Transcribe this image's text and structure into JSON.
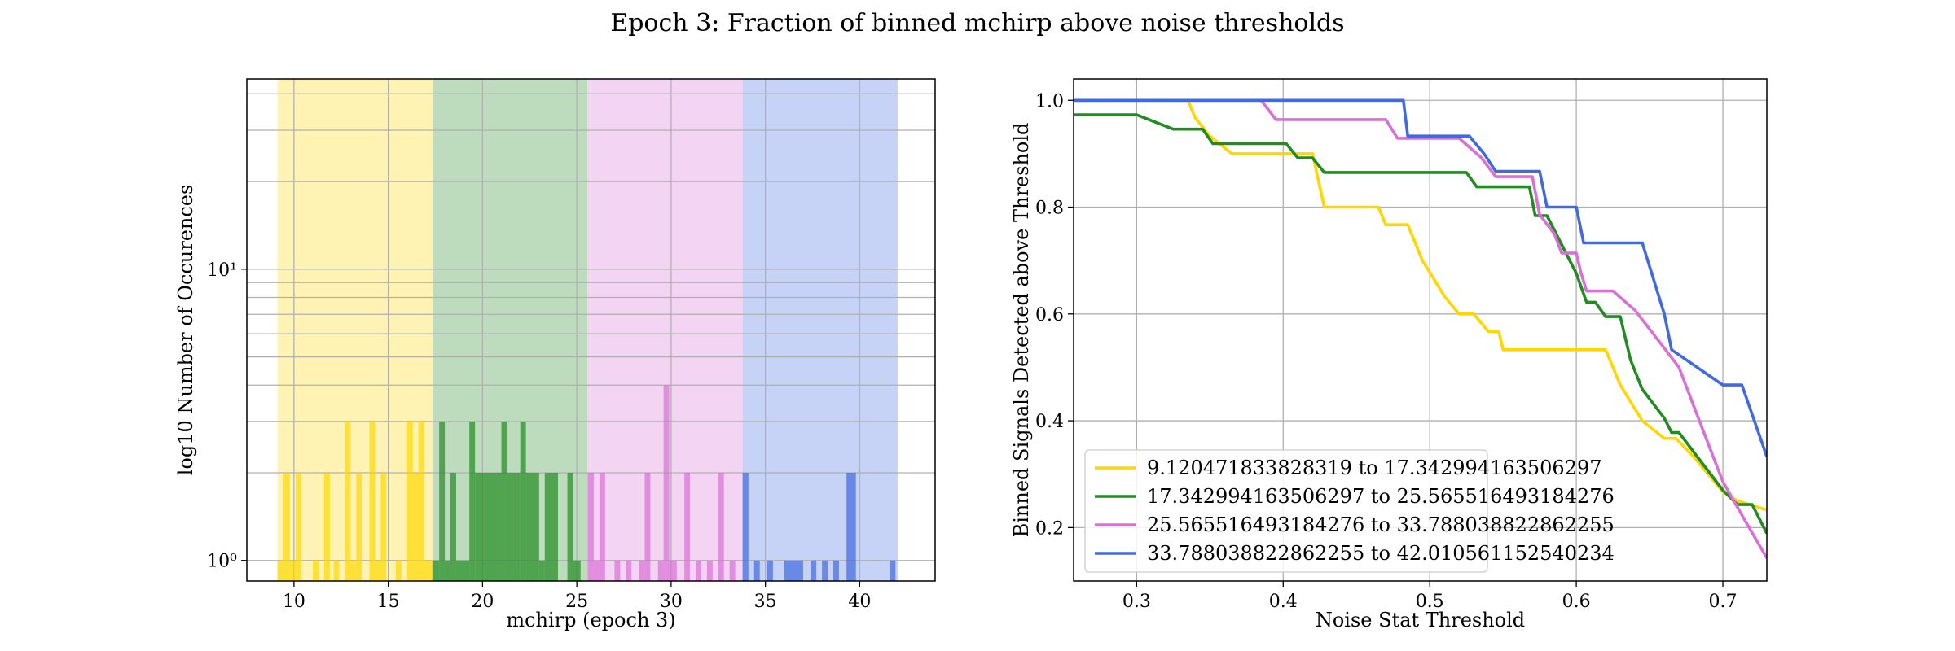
{
  "title": "Epoch 3: Fraction of binned mchirp above noise thresholds",
  "chart_data": [
    {
      "type": "histogram",
      "xlabel": "mchirp (epoch 3)",
      "ylabel": "log10 Number of Occurences",
      "xlim": [
        7.5,
        44
      ],
      "ylim": [
        0.85,
        45
      ],
      "yscale": "log",
      "grid": true,
      "xticks": [
        10,
        15,
        20,
        25,
        30,
        35,
        40
      ],
      "xtick_labels": [
        "10",
        "15",
        "20",
        "25",
        "30",
        "35",
        "40"
      ],
      "yticks": [
        1,
        10
      ],
      "ytick_labels": [
        "10⁰",
        "10¹"
      ],
      "bin_ranges": [
        {
          "from": 9.120471833828319,
          "to": 17.342994163506297,
          "color": "#FFD700"
        },
        {
          "from": 17.342994163506297,
          "to": 25.565516493184276,
          "color": "#228B22"
        },
        {
          "from": 25.565516493184276,
          "to": 33.788038822862255,
          "color": "#DA70D6"
        },
        {
          "from": 33.788038822862255,
          "to": 42.010561152540234,
          "color": "#4169E1"
        }
      ],
      "bars": [
        {
          "x0": 9.12,
          "x1": 9.45,
          "count": 1
        },
        {
          "x0": 9.45,
          "x1": 9.78,
          "count": 2
        },
        {
          "x0": 9.78,
          "x1": 10.1,
          "count": 1
        },
        {
          "x0": 10.1,
          "x1": 10.4,
          "count": 2
        },
        {
          "x0": 11.0,
          "x1": 11.3,
          "count": 1
        },
        {
          "x0": 11.6,
          "x1": 11.9,
          "count": 2
        },
        {
          "x0": 12.1,
          "x1": 12.4,
          "count": 1
        },
        {
          "x0": 12.7,
          "x1": 13.0,
          "count": 3
        },
        {
          "x0": 13.0,
          "x1": 13.3,
          "count": 1
        },
        {
          "x0": 13.3,
          "x1": 13.6,
          "count": 2
        },
        {
          "x0": 14.0,
          "x1": 14.3,
          "count": 3
        },
        {
          "x0": 14.3,
          "x1": 14.6,
          "count": 1
        },
        {
          "x0": 14.6,
          "x1": 14.9,
          "count": 2
        },
        {
          "x0": 15.4,
          "x1": 15.7,
          "count": 1
        },
        {
          "x0": 16.0,
          "x1": 16.3,
          "count": 3
        },
        {
          "x0": 16.3,
          "x1": 16.6,
          "count": 2
        },
        {
          "x0": 16.6,
          "x1": 16.9,
          "count": 3
        },
        {
          "x0": 16.9,
          "x1": 17.34,
          "count": 1
        },
        {
          "x0": 17.34,
          "x1": 17.7,
          "count": 1
        },
        {
          "x0": 17.7,
          "x1": 18.0,
          "count": 3
        },
        {
          "x0": 18.0,
          "x1": 18.3,
          "count": 1
        },
        {
          "x0": 18.3,
          "x1": 18.6,
          "count": 2
        },
        {
          "x0": 18.6,
          "x1": 19.3,
          "count": 1
        },
        {
          "x0": 19.3,
          "x1": 19.6,
          "count": 3
        },
        {
          "x0": 19.6,
          "x1": 21.0,
          "count": 2
        },
        {
          "x0": 21.0,
          "x1": 21.3,
          "count": 3
        },
        {
          "x0": 21.3,
          "x1": 22.0,
          "count": 2
        },
        {
          "x0": 22.0,
          "x1": 22.3,
          "count": 3
        },
        {
          "x0": 22.3,
          "x1": 23.0,
          "count": 2
        },
        {
          "x0": 23.0,
          "x1": 23.3,
          "count": 1
        },
        {
          "x0": 23.3,
          "x1": 24.0,
          "count": 2
        },
        {
          "x0": 24.5,
          "x1": 24.8,
          "count": 2
        },
        {
          "x0": 24.8,
          "x1": 25.2,
          "count": 1
        },
        {
          "x0": 25.57,
          "x1": 25.9,
          "count": 2
        },
        {
          "x0": 25.9,
          "x1": 26.2,
          "count": 1
        },
        {
          "x0": 26.2,
          "x1": 26.5,
          "count": 2
        },
        {
          "x0": 27.0,
          "x1": 27.3,
          "count": 1
        },
        {
          "x0": 27.6,
          "x1": 27.9,
          "count": 1
        },
        {
          "x0": 28.3,
          "x1": 28.6,
          "count": 1
        },
        {
          "x0": 28.6,
          "x1": 28.9,
          "count": 2
        },
        {
          "x0": 29.3,
          "x1": 29.6,
          "count": 1
        },
        {
          "x0": 29.6,
          "x1": 29.9,
          "count": 4
        },
        {
          "x0": 29.9,
          "x1": 30.3,
          "count": 1
        },
        {
          "x0": 30.7,
          "x1": 31.0,
          "count": 2
        },
        {
          "x0": 31.3,
          "x1": 31.6,
          "count": 1
        },
        {
          "x0": 31.9,
          "x1": 32.2,
          "count": 1
        },
        {
          "x0": 32.5,
          "x1": 32.8,
          "count": 2
        },
        {
          "x0": 33.1,
          "x1": 33.4,
          "count": 1
        },
        {
          "x0": 33.79,
          "x1": 34.1,
          "count": 2
        },
        {
          "x0": 34.4,
          "x1": 34.7,
          "count": 1
        },
        {
          "x0": 35.1,
          "x1": 35.4,
          "count": 1
        },
        {
          "x0": 36.0,
          "x1": 37.0,
          "count": 1
        },
        {
          "x0": 37.4,
          "x1": 37.7,
          "count": 1
        },
        {
          "x0": 38.0,
          "x1": 38.3,
          "count": 1
        },
        {
          "x0": 38.6,
          "x1": 38.9,
          "count": 1
        },
        {
          "x0": 39.3,
          "x1": 39.8,
          "count": 2
        },
        {
          "x0": 41.6,
          "x1": 41.9,
          "count": 1
        }
      ]
    },
    {
      "type": "line",
      "xlabel": "Noise Stat Threshold",
      "ylabel": "Binned Signals Detected above Threshold",
      "xlim": [
        0.257,
        0.73
      ],
      "ylim": [
        0.1,
        1.04
      ],
      "grid": true,
      "legend_loc": "lower-left",
      "xticks": [
        0.3,
        0.4,
        0.5,
        0.6,
        0.7
      ],
      "xtick_labels": [
        "0.3",
        "0.4",
        "0.5",
        "0.6",
        "0.7"
      ],
      "yticks": [
        0.2,
        0.4,
        0.6,
        0.8,
        1.0
      ],
      "ytick_labels": [
        "0.2",
        "0.4",
        "0.6",
        "0.8",
        "1.0"
      ],
      "series": [
        {
          "name": "9.120471833828319 to 17.342994163506297",
          "color": "#FFD700",
          "points": [
            [
              0.257,
              1.0
            ],
            [
              0.335,
              1.0
            ],
            [
              0.34,
              0.967
            ],
            [
              0.35,
              0.933
            ],
            [
              0.365,
              0.9
            ],
            [
              0.42,
              0.9
            ],
            [
              0.428,
              0.8
            ],
            [
              0.465,
              0.8
            ],
            [
              0.47,
              0.767
            ],
            [
              0.485,
              0.767
            ],
            [
              0.495,
              0.7
            ],
            [
              0.51,
              0.633
            ],
            [
              0.52,
              0.6
            ],
            [
              0.53,
              0.6
            ],
            [
              0.54,
              0.567
            ],
            [
              0.547,
              0.567
            ],
            [
              0.55,
              0.533
            ],
            [
              0.62,
              0.533
            ],
            [
              0.625,
              0.5
            ],
            [
              0.63,
              0.467
            ],
            [
              0.645,
              0.4
            ],
            [
              0.66,
              0.367
            ],
            [
              0.668,
              0.367
            ],
            [
              0.68,
              0.333
            ],
            [
              0.69,
              0.3
            ],
            [
              0.7,
              0.267
            ],
            [
              0.71,
              0.25
            ],
            [
              0.73,
              0.233
            ]
          ]
        },
        {
          "name": "17.342994163506297 to 25.565516493184276",
          "color": "#228B22",
          "points": [
            [
              0.257,
              0.973
            ],
            [
              0.3,
              0.973
            ],
            [
              0.325,
              0.946
            ],
            [
              0.345,
              0.946
            ],
            [
              0.352,
              0.919
            ],
            [
              0.402,
              0.919
            ],
            [
              0.41,
              0.892
            ],
            [
              0.42,
              0.892
            ],
            [
              0.428,
              0.865
            ],
            [
              0.525,
              0.865
            ],
            [
              0.532,
              0.838
            ],
            [
              0.568,
              0.838
            ],
            [
              0.572,
              0.784
            ],
            [
              0.58,
              0.784
            ],
            [
              0.59,
              0.73
            ],
            [
              0.6,
              0.676
            ],
            [
              0.607,
              0.622
            ],
            [
              0.613,
              0.622
            ],
            [
              0.62,
              0.595
            ],
            [
              0.63,
              0.595
            ],
            [
              0.637,
              0.514
            ],
            [
              0.645,
              0.459
            ],
            [
              0.66,
              0.405
            ],
            [
              0.665,
              0.378
            ],
            [
              0.67,
              0.378
            ],
            [
              0.685,
              0.324
            ],
            [
              0.7,
              0.27
            ],
            [
              0.71,
              0.243
            ],
            [
              0.72,
              0.243
            ],
            [
              0.73,
              0.189
            ]
          ]
        },
        {
          "name": "25.565516493184276 to 33.788038822862255",
          "color": "#DA70D6",
          "points": [
            [
              0.257,
              1.0
            ],
            [
              0.385,
              1.0
            ],
            [
              0.395,
              0.964
            ],
            [
              0.47,
              0.964
            ],
            [
              0.478,
              0.929
            ],
            [
              0.52,
              0.929
            ],
            [
              0.535,
              0.893
            ],
            [
              0.545,
              0.857
            ],
            [
              0.57,
              0.857
            ],
            [
              0.575,
              0.786
            ],
            [
              0.585,
              0.75
            ],
            [
              0.59,
              0.714
            ],
            [
              0.6,
              0.714
            ],
            [
              0.603,
              0.679
            ],
            [
              0.607,
              0.643
            ],
            [
              0.625,
              0.643
            ],
            [
              0.64,
              0.607
            ],
            [
              0.66,
              0.536
            ],
            [
              0.67,
              0.5
            ],
            [
              0.69,
              0.357
            ],
            [
              0.7,
              0.286
            ],
            [
              0.715,
              0.214
            ],
            [
              0.73,
              0.143
            ]
          ]
        },
        {
          "name": "33.788038822862255 to 42.010561152540234",
          "color": "#4169E1",
          "points": [
            [
              0.257,
              1.0
            ],
            [
              0.482,
              1.0
            ],
            [
              0.485,
              0.933
            ],
            [
              0.527,
              0.933
            ],
            [
              0.537,
              0.9
            ],
            [
              0.545,
              0.867
            ],
            [
              0.575,
              0.867
            ],
            [
              0.58,
              0.8
            ],
            [
              0.6,
              0.8
            ],
            [
              0.605,
              0.733
            ],
            [
              0.645,
              0.733
            ],
            [
              0.66,
              0.6
            ],
            [
              0.665,
              0.533
            ],
            [
              0.7,
              0.467
            ],
            [
              0.713,
              0.467
            ],
            [
              0.73,
              0.333
            ]
          ]
        }
      ]
    }
  ]
}
